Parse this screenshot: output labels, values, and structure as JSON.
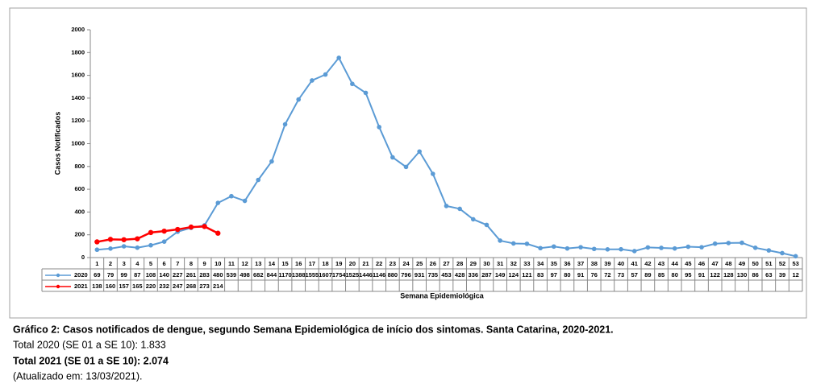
{
  "chart_data": {
    "type": "line",
    "y_label": "Casos Notificados",
    "x_label": "Semana Epidemiológica",
    "categories": [
      "1",
      "2",
      "3",
      "4",
      "5",
      "6",
      "7",
      "8",
      "9",
      "10",
      "11",
      "12",
      "13",
      "14",
      "15",
      "16",
      "17",
      "18",
      "19",
      "20",
      "21",
      "22",
      "23",
      "24",
      "25",
      "26",
      "27",
      "28",
      "29",
      "30",
      "31",
      "32",
      "33",
      "34",
      "35",
      "36",
      "37",
      "38",
      "39",
      "40",
      "41",
      "42",
      "43",
      "44",
      "45",
      "46",
      "47",
      "48",
      "49",
      "50",
      "51",
      "52",
      "53"
    ],
    "series": [
      {
        "name": "2020",
        "color": "#5b9bd5",
        "values": [
          69,
          79,
          99,
          87,
          108,
          140,
          227,
          261,
          283,
          480,
          539,
          498,
          682,
          844,
          1170,
          1388,
          1555,
          1607,
          1754,
          1525,
          1446,
          1146,
          880,
          796,
          931,
          735,
          453,
          428,
          336,
          287,
          149,
          124,
          121,
          83,
          97,
          80,
          91,
          76,
          72,
          73,
          57,
          89,
          85,
          80,
          95,
          91,
          122,
          128,
          130,
          86,
          63,
          39,
          12
        ]
      },
      {
        "name": "2021",
        "color": "#ff0000",
        "values": [
          138,
          160,
          157,
          165,
          220,
          232,
          247,
          268,
          273,
          214,
          null,
          null,
          null,
          null,
          null,
          null,
          null,
          null,
          null,
          null,
          null,
          null,
          null,
          null,
          null,
          null,
          null,
          null,
          null,
          null,
          null,
          null,
          null,
          null,
          null,
          null,
          null,
          null,
          null,
          null,
          null,
          null,
          null,
          null,
          null,
          null,
          null,
          null,
          null,
          null,
          null,
          null,
          null
        ]
      }
    ],
    "ylim": [
      0,
      2000
    ],
    "yticks": [
      0,
      200,
      400,
      600,
      800,
      1000,
      1200,
      1400,
      1600,
      1800,
      2000
    ],
    "grid": false
  },
  "caption": {
    "title": "Gráfico 2: Casos notificados de dengue, segundo Semana Epidemiológica de início dos sintomas. Santa Catarina, 2020-2021.",
    "total_2020": "Total 2020 (SE 01 a SE 10): 1.833",
    "total_2021": "Total 2021 (SE 01 a SE 10): 2.074",
    "updated": "(Atualizado em: 13/03/2021)."
  }
}
